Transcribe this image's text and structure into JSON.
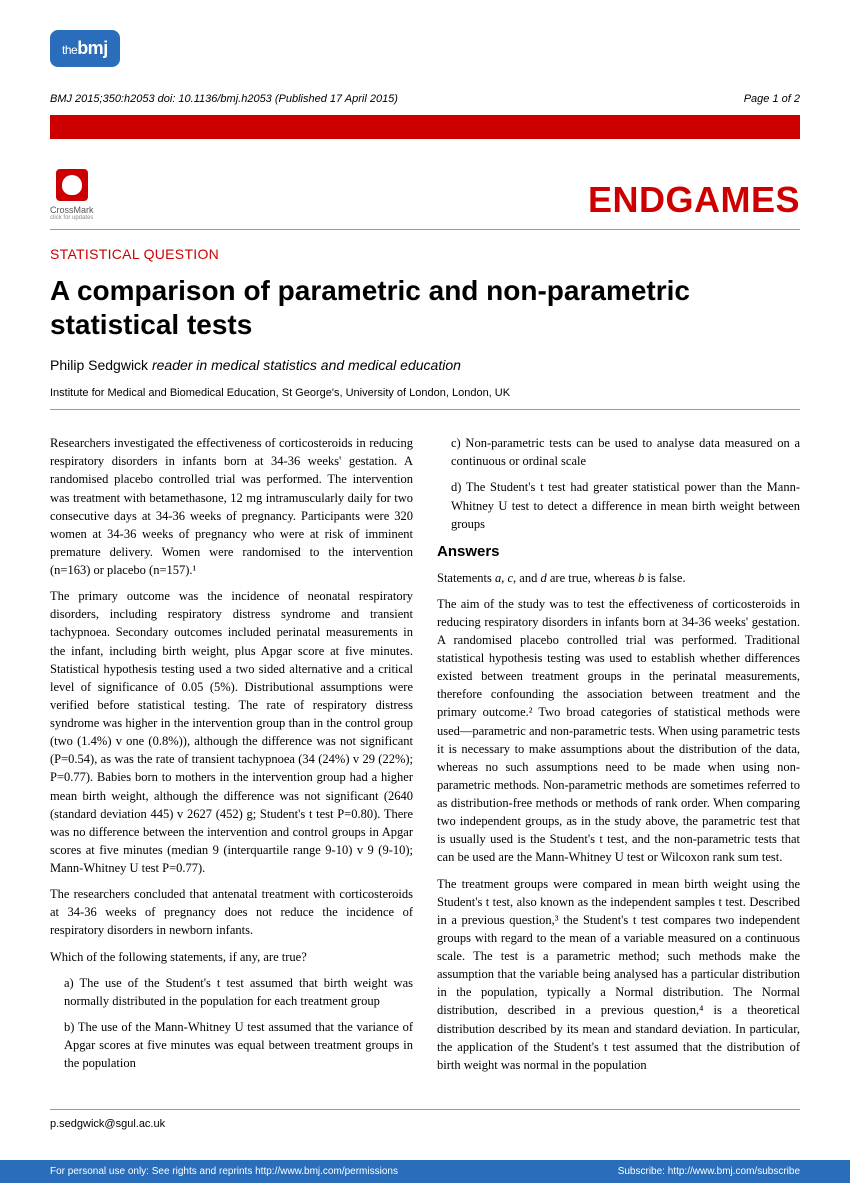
{
  "logo": {
    "prefix": "the",
    "main": "bmj"
  },
  "citation": {
    "text": "BMJ 2015;350:h2053 doi: 10.1136/bmj.h2053 (Published 17 April 2015)",
    "page": "Page 1 of 2"
  },
  "crossmark": {
    "label": "CrossMark",
    "sub": "click for updates"
  },
  "section_header": "ENDGAMES",
  "category": "STATISTICAL QUESTION",
  "title": "A comparison of parametric and non-parametric statistical tests",
  "author": {
    "name": "Philip Sedgwick",
    "role": "reader in medical statistics and medical education"
  },
  "affiliation": "Institute for Medical and Biomedical Education, St George's, University of London, London, UK",
  "body": {
    "p1": "Researchers investigated the effectiveness of corticosteroids in reducing respiratory disorders in infants born at 34-36 weeks' gestation. A randomised placebo controlled trial was performed. The intervention was treatment with betamethasone, 12 mg intramuscularly daily for two consecutive days at 34-36 weeks of pregnancy. Participants were 320 women at 34-36 weeks of pregnancy who were at risk of imminent premature delivery. Women were randomised to the intervention (n=163) or placebo (n=157).¹",
    "p2": "The primary outcome was the incidence of neonatal respiratory disorders, including respiratory distress syndrome and transient tachypnoea. Secondary outcomes included perinatal measurements in the infant, including birth weight, plus Apgar score at five minutes. Statistical hypothesis testing used a two sided alternative and a critical level of significance of 0.05 (5%). Distributional assumptions were verified before statistical testing. The rate of respiratory distress syndrome was higher in the intervention group than in the control group (two (1.4%) v one (0.8%)), although the difference was not significant (P=0.54), as was the rate of transient tachypnoea (34 (24%) v 29 (22%); P=0.77). Babies born to mothers in the intervention group had a higher mean birth weight, although the difference was not significant (2640 (standard deviation 445) v 2627 (452) g; Student's t test P=0.80). There was no difference between the intervention and control groups in Apgar scores at five minutes (median 9 (interquartile range 9-10) v 9 (9-10); Mann-Whitney U test P=0.77).",
    "p3": "The researchers concluded that antenatal treatment with corticosteroids at 34-36 weeks of pregnancy does not reduce the incidence of respiratory disorders in newborn infants.",
    "p4": "Which of the following statements, if any, are true?",
    "opt_a": "a) The use of the Student's t test assumed that birth weight was normally distributed in the population for each treatment group",
    "opt_b": "b) The use of the Mann-Whitney U test assumed that the variance of Apgar scores at five minutes was equal between treatment groups in the population",
    "opt_c": "c) Non-parametric tests can be used to analyse data measured on a continuous or ordinal scale",
    "opt_d": "d) The Student's t test had greater statistical power than the Mann-Whitney U test to detect a difference in mean birth weight between groups",
    "answers_heading": "Answers",
    "ans_intro": "Statements a, c, and d are true, whereas b is false.",
    "ans_p1": "The aim of the study was to test the effectiveness of corticosteroids in reducing respiratory disorders in infants born at 34-36 weeks' gestation. A randomised placebo controlled trial was performed. Traditional statistical hypothesis testing was used to establish whether differences existed between treatment groups in the perinatal measurements, therefore confounding the association between treatment and the primary outcome.² Two broad categories of statistical methods were used—parametric and non-parametric tests. When using parametric tests it is necessary to make assumptions about the distribution of the data, whereas no such assumptions need to be made when using non-parametric methods. Non-parametric methods are sometimes referred to as distribution-free methods or methods of rank order. When comparing two independent groups, as in the study above, the parametric test that is usually used is the Student's t test, and the non-parametric tests that can be used are the Mann-Whitney U test or Wilcoxon rank sum test.",
    "ans_p2": "The treatment groups were compared in mean birth weight using the Student's t test, also known as the independent samples t test. Described in a previous question,³ the Student's t test compares two independent groups with regard to the mean of a variable measured on a continuous scale. The test is a parametric method; such methods make the assumption that the variable being analysed has a particular distribution in the population, typically a Normal distribution. The Normal distribution, described in a previous question,⁴ is a theoretical distribution described by its mean and standard deviation. In particular, the application of the Student's t test assumed that the distribution of birth weight was normal in the population"
  },
  "footer_email": "p.sedgwick@sgul.ac.uk",
  "bottom_bar": {
    "left_label": "For personal use only: See rights and reprints",
    "left_url": "http://www.bmj.com/permissions",
    "right_label": "Subscribe:",
    "right_url": "http://www.bmj.com/subscribe"
  },
  "colors": {
    "brand_blue": "#2a6ebb",
    "brand_red": "#cc0000",
    "text": "#000000",
    "rule": "#999999"
  }
}
